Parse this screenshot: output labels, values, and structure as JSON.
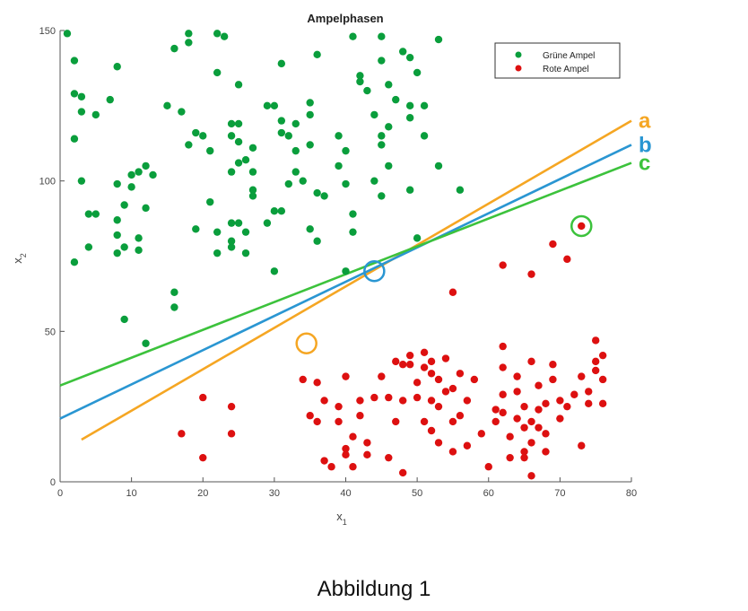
{
  "chart_data": {
    "type": "scatter",
    "title": "Ampelphasen",
    "xlabel_main": "x",
    "xlabel_sub": "1",
    "ylabel_main": "x",
    "ylabel_sub": "2",
    "xlim": [
      0,
      80
    ],
    "ylim": [
      0,
      150
    ],
    "x_ticks": [
      0,
      10,
      20,
      30,
      40,
      50,
      60,
      70,
      80
    ],
    "y_ticks": [
      0,
      50,
      100,
      150
    ],
    "x_tick_labels": [
      "0",
      "10",
      "20",
      "30",
      "40",
      "50",
      "60",
      "70",
      "80"
    ],
    "y_tick_labels": [
      "0",
      "50",
      "100",
      "150"
    ],
    "grid": false,
    "legend_position": "top-right",
    "series": [
      {
        "name": "Grüne Ampel",
        "color": "#0a9e3c",
        "points": [
          [
            1,
            149
          ],
          [
            2,
            140
          ],
          [
            2,
            129
          ],
          [
            3,
            128
          ],
          [
            3,
            123
          ],
          [
            5,
            122
          ],
          [
            2,
            114
          ],
          [
            8,
            138
          ],
          [
            7,
            127
          ],
          [
            3,
            100
          ],
          [
            4,
            89
          ],
          [
            5,
            89
          ],
          [
            4,
            78
          ],
          [
            2,
            73
          ],
          [
            8,
            99
          ],
          [
            10,
            98
          ],
          [
            10,
            102
          ],
          [
            11,
            103
          ],
          [
            12,
            105
          ],
          [
            13,
            102
          ],
          [
            9,
            92
          ],
          [
            12,
            91
          ],
          [
            8,
            87
          ],
          [
            8,
            82
          ],
          [
            9,
            78
          ],
          [
            11,
            81
          ],
          [
            11,
            77
          ],
          [
            8,
            76
          ],
          [
            9,
            54
          ],
          [
            12,
            46
          ],
          [
            16,
            63
          ],
          [
            16,
            58
          ],
          [
            15,
            125
          ],
          [
            17,
            123
          ],
          [
            16,
            144
          ],
          [
            18,
            146
          ],
          [
            18,
            149
          ],
          [
            22,
            149
          ],
          [
            23,
            148
          ],
          [
            22,
            136
          ],
          [
            25,
            132
          ],
          [
            18,
            112
          ],
          [
            19,
            116
          ],
          [
            20,
            115
          ],
          [
            21,
            110
          ],
          [
            24,
            119
          ],
          [
            25,
            119
          ],
          [
            24,
            115
          ],
          [
            25,
            113
          ],
          [
            27,
            111
          ],
          [
            26,
            107
          ],
          [
            25,
            106
          ],
          [
            24,
            103
          ],
          [
            27,
            103
          ],
          [
            21,
            93
          ],
          [
            19,
            84
          ],
          [
            22,
            83
          ],
          [
            22,
            76
          ],
          [
            24,
            86
          ],
          [
            25,
            86
          ],
          [
            26,
            83
          ],
          [
            24,
            80
          ],
          [
            26,
            76
          ],
          [
            24,
            78
          ],
          [
            27,
            95
          ],
          [
            27,
            97
          ],
          [
            29,
            125
          ],
          [
            30,
            125
          ],
          [
            31,
            139
          ],
          [
            31,
            116
          ],
          [
            31,
            120
          ],
          [
            32,
            115
          ],
          [
            33,
            110
          ],
          [
            33,
            119
          ],
          [
            35,
            112
          ],
          [
            33,
            103
          ],
          [
            32,
            99
          ],
          [
            34,
            100
          ],
          [
            29,
            86
          ],
          [
            30,
            90
          ],
          [
            31,
            90
          ],
          [
            30,
            70
          ],
          [
            35,
            84
          ],
          [
            36,
            80
          ],
          [
            36,
            96
          ],
          [
            35,
            122
          ],
          [
            35,
            126
          ],
          [
            36,
            142
          ],
          [
            37,
            95
          ],
          [
            39,
            105
          ],
          [
            39,
            115
          ],
          [
            40,
            110
          ],
          [
            40,
            99
          ],
          [
            41,
            89
          ],
          [
            41,
            83
          ],
          [
            40,
            70
          ],
          [
            41,
            148
          ],
          [
            42,
            135
          ],
          [
            42,
            133
          ],
          [
            43,
            130
          ],
          [
            44,
            122
          ],
          [
            45,
            148
          ],
          [
            45,
            140
          ],
          [
            46,
            132
          ],
          [
            47,
            127
          ],
          [
            46,
            118
          ],
          [
            45,
            115
          ],
          [
            45,
            112
          ],
          [
            44,
            100
          ],
          [
            45,
            95
          ],
          [
            46,
            105
          ],
          [
            48,
            143
          ],
          [
            49,
            141
          ],
          [
            49,
            125
          ],
          [
            49,
            121
          ],
          [
            50,
            136
          ],
          [
            51,
            125
          ],
          [
            50,
            81
          ],
          [
            49,
            97
          ],
          [
            51,
            115
          ],
          [
            53,
            147
          ],
          [
            53,
            105
          ],
          [
            56,
            97
          ]
        ]
      },
      {
        "name": "Rote Ampel",
        "color": "#dd1010",
        "points": [
          [
            17,
            16
          ],
          [
            20,
            28
          ],
          [
            20,
            8
          ],
          [
            24,
            25
          ],
          [
            24,
            16
          ],
          [
            34,
            34
          ],
          [
            35,
            22
          ],
          [
            36,
            20
          ],
          [
            36,
            33
          ],
          [
            37,
            27
          ],
          [
            37,
            7
          ],
          [
            38,
            5
          ],
          [
            39,
            25
          ],
          [
            39,
            20
          ],
          [
            40,
            35
          ],
          [
            40,
            11
          ],
          [
            40,
            9
          ],
          [
            41,
            15
          ],
          [
            41,
            5
          ],
          [
            42,
            27
          ],
          [
            42,
            22
          ],
          [
            43,
            13
          ],
          [
            43,
            9
          ],
          [
            44,
            28
          ],
          [
            45,
            35
          ],
          [
            46,
            28
          ],
          [
            46,
            8
          ],
          [
            47,
            20
          ],
          [
            47,
            40
          ],
          [
            48,
            39
          ],
          [
            48,
            27
          ],
          [
            48,
            3
          ],
          [
            49,
            42
          ],
          [
            49,
            39
          ],
          [
            50,
            33
          ],
          [
            50,
            28
          ],
          [
            51,
            43
          ],
          [
            51,
            38
          ],
          [
            51,
            20
          ],
          [
            52,
            40
          ],
          [
            52,
            36
          ],
          [
            52,
            27
          ],
          [
            52,
            17
          ],
          [
            53,
            34
          ],
          [
            53,
            25
          ],
          [
            53,
            13
          ],
          [
            54,
            41
          ],
          [
            54,
            30
          ],
          [
            55,
            31
          ],
          [
            55,
            20
          ],
          [
            55,
            10
          ],
          [
            56,
            36
          ],
          [
            56,
            22
          ],
          [
            57,
            27
          ],
          [
            57,
            12
          ],
          [
            58,
            34
          ],
          [
            59,
            16
          ],
          [
            60,
            5
          ],
          [
            61,
            24
          ],
          [
            61,
            20
          ],
          [
            62,
            45
          ],
          [
            62,
            38
          ],
          [
            62,
            29
          ],
          [
            62,
            23
          ],
          [
            63,
            15
          ],
          [
            63,
            8
          ],
          [
            64,
            35
          ],
          [
            64,
            30
          ],
          [
            64,
            21
          ],
          [
            65,
            25
          ],
          [
            65,
            18
          ],
          [
            65,
            10
          ],
          [
            65,
            8
          ],
          [
            66,
            40
          ],
          [
            66,
            20
          ],
          [
            66,
            13
          ],
          [
            66,
            2
          ],
          [
            67,
            32
          ],
          [
            67,
            24
          ],
          [
            67,
            18
          ],
          [
            68,
            26
          ],
          [
            68,
            16
          ],
          [
            68,
            10
          ],
          [
            69,
            39
          ],
          [
            69,
            34
          ],
          [
            70,
            27
          ],
          [
            70,
            21
          ],
          [
            71,
            25
          ],
          [
            72,
            29
          ],
          [
            73,
            12
          ],
          [
            73,
            35
          ],
          [
            74,
            30
          ],
          [
            74,
            26
          ],
          [
            75,
            47
          ],
          [
            75,
            40
          ],
          [
            75,
            37
          ],
          [
            76,
            34
          ],
          [
            76,
            26
          ],
          [
            76,
            42
          ],
          [
            62,
            72
          ],
          [
            66,
            69
          ],
          [
            69,
            79
          ],
          [
            71,
            74
          ],
          [
            73,
            85
          ],
          [
            55,
            63
          ]
        ]
      }
    ],
    "lines": [
      {
        "label": "a",
        "color": "#f5a623",
        "from": [
          3,
          14
        ],
        "to": [
          80,
          120
        ]
      },
      {
        "label": "b",
        "color": "#2a96d2",
        "from": [
          0,
          21
        ],
        "to": [
          80,
          112
        ]
      },
      {
        "label": "c",
        "color": "#3cc23c",
        "from": [
          0,
          32
        ],
        "to": [
          80,
          106
        ]
      }
    ],
    "markers": [
      {
        "color": "#2a96d2",
        "at": [
          44,
          70
        ]
      },
      {
        "color": "#f5a623",
        "at": [
          34.5,
          46
        ]
      },
      {
        "color": "#3cc23c",
        "at": [
          73,
          85
        ]
      }
    ]
  },
  "caption": "Abbildung 1"
}
